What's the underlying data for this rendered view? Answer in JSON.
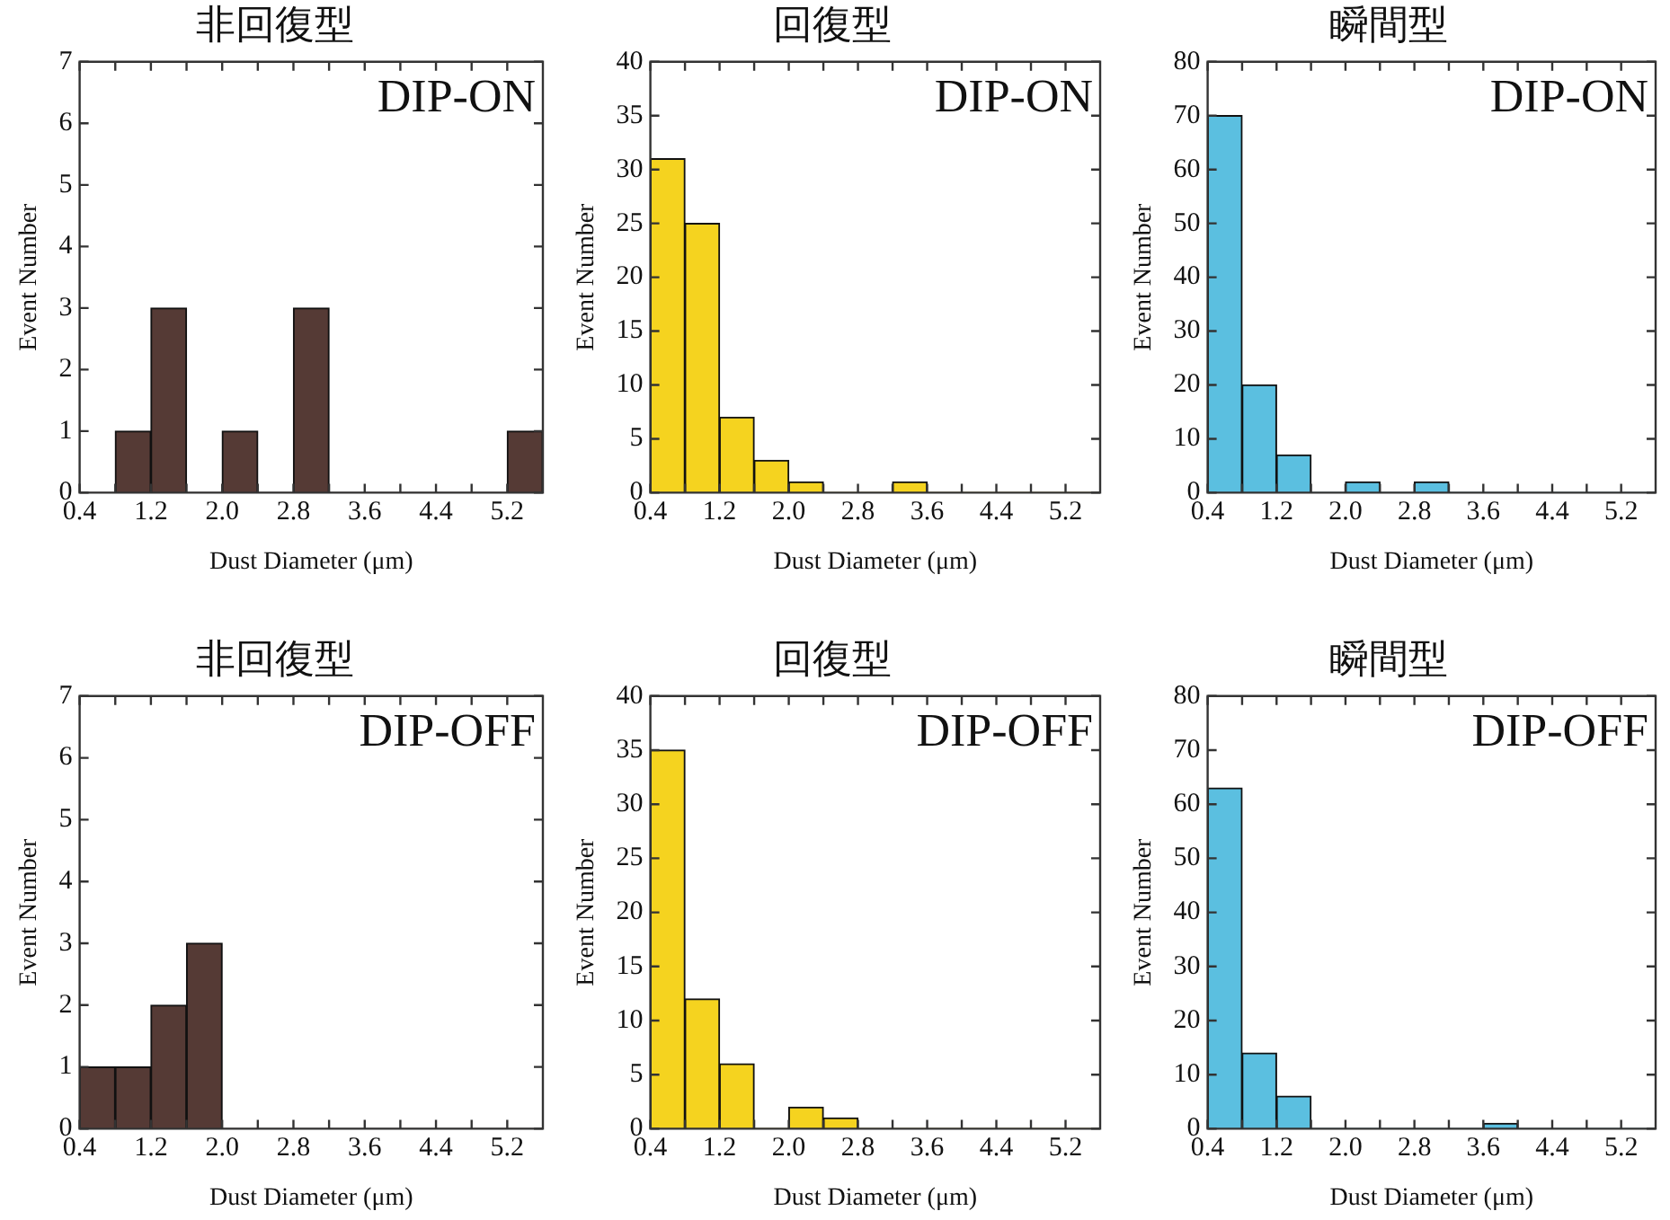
{
  "chart_data": [
    {
      "type": "histogram",
      "title": "非回復型",
      "annotations": [
        "DIP-ON"
      ],
      "xlabel": "Dust Diameter (μm)",
      "ylabel": "Event Number",
      "color": "#553a35",
      "bins": [
        0.4,
        0.8,
        1.2,
        1.6,
        2.0,
        2.4,
        2.8,
        3.2,
        3.6,
        4.0,
        4.4,
        4.8,
        5.2,
        5.6
      ],
      "values": [
        0,
        1,
        3,
        0,
        1,
        0,
        3,
        0,
        0,
        0,
        0,
        0,
        1
      ],
      "xlim": [
        0.4,
        5.6
      ],
      "xticks": [
        0.4,
        {
          "value": 0.8,
          "label": null
        },
        1.2,
        {
          "value": 1.6,
          "label": null
        },
        {
          "value": 2.0,
          "label": "2.0"
        },
        {
          "value": 2.4,
          "label": null
        },
        2.8,
        {
          "value": 3.2,
          "label": null
        },
        3.6,
        {
          "value": 4.0,
          "label": null
        },
        4.4,
        {
          "value": 4.8,
          "label": null
        },
        5.2
      ],
      "ylim": [
        0,
        7
      ],
      "yticks": [
        0,
        1,
        2,
        3,
        4,
        5,
        6,
        7
      ]
    },
    {
      "type": "histogram",
      "title": "回復型",
      "annotations": [
        "DIP-ON"
      ],
      "xlabel": "Dust Diameter (μm)",
      "ylabel": "Event Number",
      "color": "#f5d31f",
      "bins": [
        0.4,
        0.8,
        1.2,
        1.6,
        2.0,
        2.4,
        2.8,
        3.2,
        3.6,
        4.0,
        4.4,
        4.8,
        5.2,
        5.6
      ],
      "values": [
        31,
        25,
        7,
        3,
        1,
        0,
        0,
        1,
        0,
        0,
        0,
        0,
        0
      ],
      "xlim": [
        0.4,
        5.6
      ],
      "xticks": [
        0.4,
        {
          "value": 0.8,
          "label": null
        },
        1.2,
        {
          "value": 1.6,
          "label": null
        },
        {
          "value": 2.0,
          "label": "2.0"
        },
        {
          "value": 2.4,
          "label": null
        },
        2.8,
        {
          "value": 3.2,
          "label": null
        },
        3.6,
        {
          "value": 4.0,
          "label": null
        },
        4.4,
        {
          "value": 4.8,
          "label": null
        },
        5.2
      ],
      "ylim": [
        0,
        40
      ],
      "yticks": [
        0,
        5,
        10,
        15,
        20,
        25,
        30,
        35,
        40
      ]
    },
    {
      "type": "histogram",
      "title": "瞬間型",
      "annotations": [
        "DIP-ON"
      ],
      "xlabel": "Dust Diameter (μm)",
      "ylabel": "Event Number",
      "color": "#5bbfe0",
      "bins": [
        0.4,
        0.8,
        1.2,
        1.6,
        2.0,
        2.4,
        2.8,
        3.2,
        3.6,
        4.0,
        4.4,
        4.8,
        5.2,
        5.6
      ],
      "values": [
        70,
        20,
        7,
        0,
        2,
        0,
        2,
        0,
        0,
        0,
        0,
        0,
        0
      ],
      "xlim": [
        0.4,
        5.6
      ],
      "xticks": [
        0.4,
        {
          "value": 0.8,
          "label": null
        },
        1.2,
        {
          "value": 1.6,
          "label": null
        },
        {
          "value": 2.0,
          "label": "2.0"
        },
        {
          "value": 2.4,
          "label": null
        },
        2.8,
        {
          "value": 3.2,
          "label": null
        },
        3.6,
        {
          "value": 4.0,
          "label": null
        },
        4.4,
        {
          "value": 4.8,
          "label": null
        },
        5.2
      ],
      "ylim": [
        0,
        80
      ],
      "yticks": [
        0,
        10,
        20,
        30,
        40,
        50,
        60,
        70,
        80
      ]
    },
    {
      "type": "histogram",
      "title": "非回復型",
      "annotations": [
        "DIP-OFF"
      ],
      "xlabel": "Dust Diameter (μm)",
      "ylabel": "Event Number",
      "color": "#553a35",
      "bins": [
        0.4,
        0.8,
        1.2,
        1.6,
        2.0,
        2.4,
        2.8,
        3.2,
        3.6,
        4.0,
        4.4,
        4.8,
        5.2,
        5.6
      ],
      "values": [
        1,
        1,
        2,
        3,
        0,
        0,
        0,
        0,
        0,
        0,
        0,
        0,
        0
      ],
      "xlim": [
        0.4,
        5.6
      ],
      "xticks": [
        0.4,
        {
          "value": 0.8,
          "label": null
        },
        1.2,
        {
          "value": 1.6,
          "label": null
        },
        {
          "value": 2.0,
          "label": "2.0"
        },
        {
          "value": 2.4,
          "label": null
        },
        2.8,
        {
          "value": 3.2,
          "label": null
        },
        3.6,
        {
          "value": 4.0,
          "label": null
        },
        4.4,
        {
          "value": 4.8,
          "label": null
        },
        5.2
      ],
      "ylim": [
        0,
        7
      ],
      "yticks": [
        0,
        1,
        2,
        3,
        4,
        5,
        6,
        7
      ]
    },
    {
      "type": "histogram",
      "title": "回復型",
      "annotations": [
        "DIP-OFF"
      ],
      "xlabel": "Dust Diameter (μm)",
      "ylabel": "Event Number",
      "color": "#f5d31f",
      "bins": [
        0.4,
        0.8,
        1.2,
        1.6,
        2.0,
        2.4,
        2.8,
        3.2,
        3.6,
        4.0,
        4.4,
        4.8,
        5.2,
        5.6
      ],
      "values": [
        35,
        12,
        6,
        0,
        2,
        1,
        0,
        0,
        0,
        0,
        0,
        0,
        0
      ],
      "xlim": [
        0.4,
        5.6
      ],
      "xticks": [
        0.4,
        {
          "value": 0.8,
          "label": null
        },
        1.2,
        {
          "value": 1.6,
          "label": null
        },
        {
          "value": 2.0,
          "label": "2.0"
        },
        {
          "value": 2.4,
          "label": null
        },
        2.8,
        {
          "value": 3.2,
          "label": null
        },
        3.6,
        {
          "value": 4.0,
          "label": null
        },
        4.4,
        {
          "value": 4.8,
          "label": null
        },
        5.2
      ],
      "ylim": [
        0,
        40
      ],
      "yticks": [
        0,
        5,
        10,
        15,
        20,
        25,
        30,
        35,
        40
      ]
    },
    {
      "type": "histogram",
      "title": "瞬間型",
      "annotations": [
        "DIP-OFF"
      ],
      "xlabel": "Dust Diameter (μm)",
      "ylabel": "Event Number",
      "color": "#5bbfe0",
      "bins": [
        0.4,
        0.8,
        1.2,
        1.6,
        2.0,
        2.4,
        2.8,
        3.2,
        3.6,
        4.0,
        4.4,
        4.8,
        5.2,
        5.6
      ],
      "values": [
        63,
        14,
        6,
        0,
        0,
        0,
        0,
        0,
        1,
        0,
        0,
        0,
        0
      ],
      "xlim": [
        0.4,
        5.6
      ],
      "xticks": [
        0.4,
        {
          "value": 0.8,
          "label": null
        },
        1.2,
        {
          "value": 1.6,
          "label": null
        },
        {
          "value": 2.0,
          "label": "2.0"
        },
        {
          "value": 2.4,
          "label": null
        },
        2.8,
        {
          "value": 3.2,
          "label": null
        },
        3.6,
        {
          "value": 4.0,
          "label": null
        },
        4.4,
        {
          "value": 4.8,
          "label": null
        },
        5.2
      ],
      "ylim": [
        0,
        80
      ],
      "yticks": [
        0,
        10,
        20,
        30,
        40,
        50,
        60,
        70,
        80
      ]
    }
  ]
}
